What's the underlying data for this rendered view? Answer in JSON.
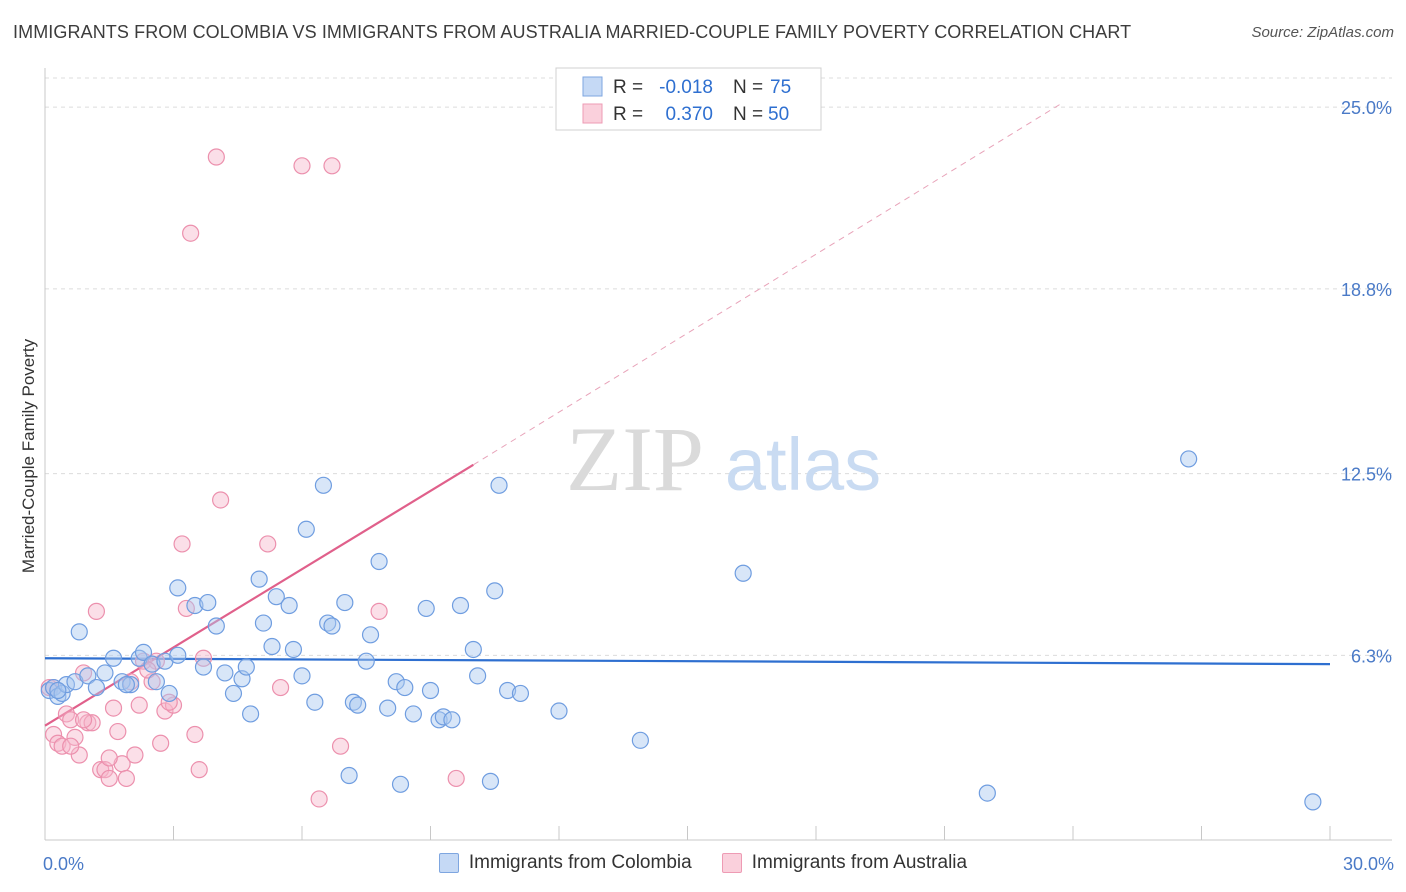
{
  "header": {
    "title": "IMMIGRANTS FROM COLOMBIA VS IMMIGRANTS FROM AUSTRALIA MARRIED-COUPLE FAMILY POVERTY CORRELATION CHART",
    "source": "Source: ZipAtlas.com"
  },
  "watermark": {
    "zip": "ZIP",
    "atlas": "atlas"
  },
  "legend_top": {
    "r_label": "R =",
    "n_label": "N =",
    "rows": [
      {
        "r": "-0.018",
        "n": "75"
      },
      {
        "r": "0.370",
        "n": "50"
      }
    ]
  },
  "colors": {
    "blue_fill": "#a9c8f0",
    "blue_stroke": "#6f9de0",
    "blue_line": "#2e6fd0",
    "pink_fill": "#f6b8cb",
    "pink_stroke": "#ec90ad",
    "pink_line": "#e0608b",
    "tick_text": "#4a7ac7",
    "grid": "#dcdcdc"
  },
  "chart_data": {
    "type": "scatter",
    "title": "IMMIGRANTS FROM COLOMBIA VS IMMIGRANTS FROM AUSTRALIA MARRIED-COUPLE FAMILY POVERTY CORRELATION CHART",
    "xlabel": "",
    "ylabel": "Married-Couple Family Poverty",
    "xlim": [
      0,
      30
    ],
    "ylim": [
      0,
      26.2
    ],
    "x_tick_labels": {
      "min": "0.0%",
      "max": "30.0%"
    },
    "y_ticks": [
      6.3,
      12.5,
      18.8,
      25.0
    ],
    "y_tick_labels": [
      "6.3%",
      "12.5%",
      "18.8%",
      "25.0%"
    ],
    "series": [
      {
        "name": "Immigrants from Colombia",
        "r": -0.018,
        "n": 75,
        "trend": {
          "x0": 0,
          "y0": 6.2,
          "x1": 30,
          "y1": 6.0
        },
        "points": [
          [
            0.1,
            5.1
          ],
          [
            0.2,
            5.2
          ],
          [
            0.3,
            4.9
          ],
          [
            0.4,
            5.0
          ],
          [
            0.5,
            5.3
          ],
          [
            0.7,
            5.4
          ],
          [
            0.8,
            7.1
          ],
          [
            1.0,
            5.6
          ],
          [
            1.2,
            5.2
          ],
          [
            1.4,
            5.7
          ],
          [
            1.6,
            6.2
          ],
          [
            1.8,
            5.4
          ],
          [
            2.0,
            5.3
          ],
          [
            2.2,
            6.2
          ],
          [
            2.3,
            6.4
          ],
          [
            2.5,
            6.0
          ],
          [
            2.8,
            6.1
          ],
          [
            2.9,
            5.0
          ],
          [
            2.6,
            5.4
          ],
          [
            3.1,
            6.3
          ],
          [
            3.1,
            8.6
          ],
          [
            3.5,
            8.0
          ],
          [
            3.8,
            8.1
          ],
          [
            3.7,
            5.9
          ],
          [
            4.0,
            7.3
          ],
          [
            4.2,
            5.7
          ],
          [
            4.4,
            5.0
          ],
          [
            4.6,
            5.5
          ],
          [
            4.7,
            5.9
          ],
          [
            4.8,
            4.3
          ],
          [
            5.0,
            8.9
          ],
          [
            5.1,
            7.4
          ],
          [
            5.3,
            6.6
          ],
          [
            5.4,
            8.3
          ],
          [
            5.7,
            8.0
          ],
          [
            5.8,
            6.5
          ],
          [
            6.0,
            5.6
          ],
          [
            6.1,
            10.6
          ],
          [
            6.3,
            4.7
          ],
          [
            6.5,
            12.1
          ],
          [
            6.6,
            7.4
          ],
          [
            6.7,
            7.3
          ],
          [
            7.0,
            8.1
          ],
          [
            7.1,
            2.2
          ],
          [
            7.2,
            4.7
          ],
          [
            7.3,
            4.6
          ],
          [
            7.5,
            6.1
          ],
          [
            7.6,
            7.0
          ],
          [
            7.8,
            9.5
          ],
          [
            8.0,
            4.5
          ],
          [
            8.2,
            5.4
          ],
          [
            8.3,
            1.9
          ],
          [
            8.4,
            5.2
          ],
          [
            8.6,
            4.3
          ],
          [
            8.9,
            7.9
          ],
          [
            9.0,
            5.1
          ],
          [
            9.2,
            4.1
          ],
          [
            9.3,
            4.2
          ],
          [
            9.5,
            4.1
          ],
          [
            9.7,
            8.0
          ],
          [
            10.0,
            6.5
          ],
          [
            10.1,
            5.6
          ],
          [
            10.4,
            2.0
          ],
          [
            10.5,
            8.5
          ],
          [
            10.6,
            12.1
          ],
          [
            10.8,
            5.1
          ],
          [
            11.1,
            5.0
          ],
          [
            12.0,
            4.4
          ],
          [
            13.9,
            3.4
          ],
          [
            16.3,
            9.1
          ],
          [
            22.0,
            1.6
          ],
          [
            26.7,
            13.0
          ],
          [
            29.6,
            1.3
          ],
          [
            0.3,
            5.1
          ],
          [
            1.9,
            5.3
          ]
        ]
      },
      {
        "name": "Immigrants from Australia",
        "r": 0.37,
        "n": 50,
        "trend": {
          "x0": 0,
          "y0": 3.9,
          "x1": 10,
          "y1": 12.8
        },
        "trend_extension": {
          "x0": 10,
          "y0": 12.8,
          "x1": 23.7,
          "y1": 25.1
        },
        "points": [
          [
            0.1,
            5.2
          ],
          [
            0.2,
            3.6
          ],
          [
            0.3,
            3.3
          ],
          [
            0.4,
            3.2
          ],
          [
            0.5,
            4.3
          ],
          [
            0.6,
            4.1
          ],
          [
            0.7,
            3.5
          ],
          [
            0.8,
            2.9
          ],
          [
            0.9,
            5.7
          ],
          [
            1.0,
            4.0
          ],
          [
            1.1,
            4.0
          ],
          [
            1.2,
            7.8
          ],
          [
            1.3,
            2.4
          ],
          [
            1.4,
            2.4
          ],
          [
            1.5,
            2.1
          ],
          [
            1.6,
            4.5
          ],
          [
            1.7,
            3.7
          ],
          [
            1.8,
            2.6
          ],
          [
            1.9,
            2.1
          ],
          [
            2.0,
            5.4
          ],
          [
            2.1,
            2.9
          ],
          [
            2.2,
            4.6
          ],
          [
            2.3,
            6.1
          ],
          [
            2.5,
            5.4
          ],
          [
            2.6,
            6.1
          ],
          [
            2.7,
            3.3
          ],
          [
            2.8,
            4.4
          ],
          [
            3.0,
            4.6
          ],
          [
            2.9,
            4.7
          ],
          [
            3.2,
            10.1
          ],
          [
            3.3,
            7.9
          ],
          [
            3.4,
            20.7
          ],
          [
            3.5,
            3.6
          ],
          [
            3.6,
            2.4
          ],
          [
            3.7,
            6.2
          ],
          [
            4.0,
            23.3
          ],
          [
            4.1,
            11.6
          ],
          [
            5.2,
            10.1
          ],
          [
            5.5,
            5.2
          ],
          [
            6.0,
            23.0
          ],
          [
            6.4,
            1.4
          ],
          [
            6.7,
            23.0
          ],
          [
            6.9,
            3.2
          ],
          [
            7.8,
            7.8
          ],
          [
            9.6,
            2.1
          ],
          [
            0.2,
            5.2
          ],
          [
            0.6,
            3.2
          ],
          [
            1.5,
            2.8
          ],
          [
            2.4,
            5.8
          ],
          [
            0.9,
            4.1
          ]
        ]
      }
    ]
  },
  "legend_bottom": {
    "items": [
      {
        "label": "Immigrants from Colombia"
      },
      {
        "label": "Immigrants from Australia"
      }
    ]
  }
}
